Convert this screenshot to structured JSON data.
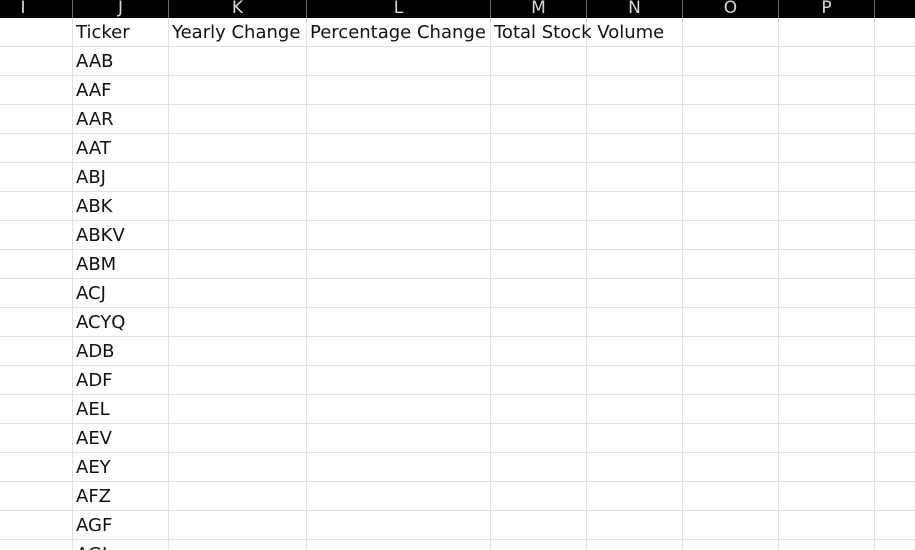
{
  "columns": [
    "I",
    "J",
    "K",
    "L",
    "M",
    "N",
    "O",
    "P"
  ],
  "headers": [
    "Ticker",
    "Yearly Change",
    "Percentage Change",
    "Total Stock Volume"
  ],
  "tickers": [
    "AAB",
    "AAF",
    "AAR",
    "AAT",
    "ABJ",
    "ABK",
    "ABKV",
    "ABM",
    "ACJ",
    "ACYQ",
    "ADB",
    "ADF",
    "AEL",
    "AEV",
    "AEY",
    "AFZ",
    "AGF",
    "AGL"
  ]
}
